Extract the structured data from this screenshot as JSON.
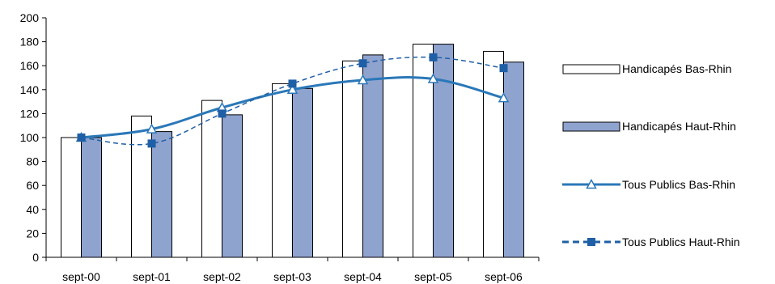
{
  "chart_data": {
    "type": "bar",
    "categories": [
      "sept-00",
      "sept-01",
      "sept-02",
      "sept-03",
      "sept-04",
      "sept-05",
      "sept-06"
    ],
    "ylim": [
      0,
      200
    ],
    "yticks": [
      0,
      20,
      40,
      60,
      80,
      100,
      120,
      140,
      160,
      180,
      200
    ],
    "grid": false,
    "legend_position": "right",
    "bar_series": [
      {
        "name": "Handicapés Bas-Rhin",
        "values": [
          100,
          118,
          131,
          145,
          164,
          178,
          172
        ],
        "color": "#ffffff"
      },
      {
        "name": "Handicapés Haut-Rhin",
        "values": [
          100,
          105,
          119,
          141,
          169,
          178,
          163
        ],
        "color": "#8fa3cf"
      }
    ],
    "line_series": [
      {
        "name": "Tous Publics Bas-Rhin",
        "values": [
          100,
          107,
          125,
          140,
          148,
          149,
          133
        ],
        "color": "#2a78b8",
        "dash": "solid",
        "marker": "triangle-open"
      },
      {
        "name": "Tous Publics Haut-Rhin",
        "values": [
          100,
          95,
          120,
          145,
          162,
          167,
          158
        ],
        "color": "#1f5fa6",
        "dash": "dashed",
        "marker": "square-filled"
      }
    ]
  }
}
